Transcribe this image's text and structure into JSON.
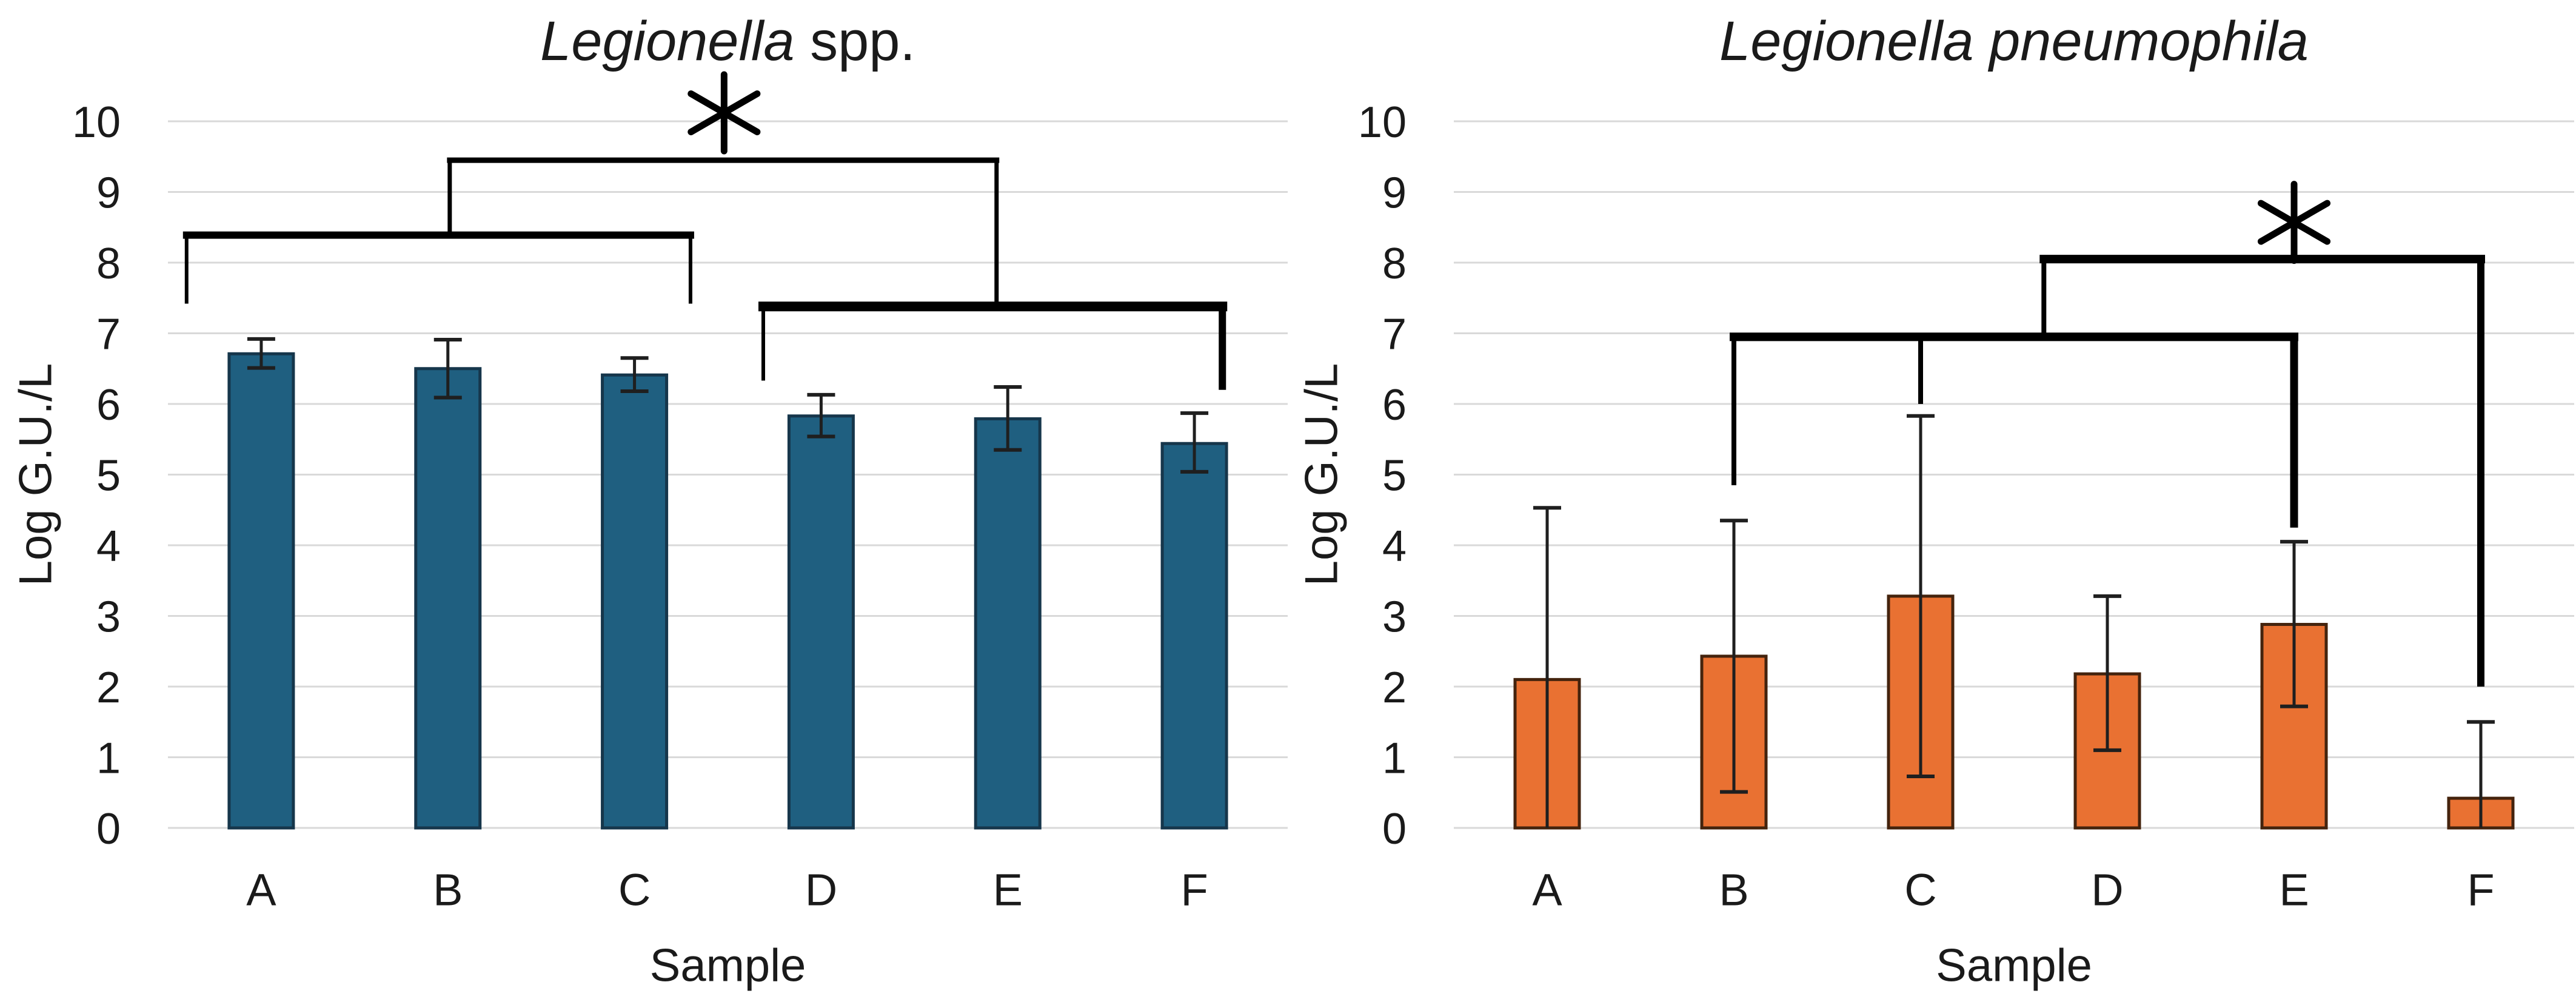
{
  "figure": {
    "background": "#FFFFFF",
    "grid_color": "#D9D9D9",
    "text_color": "#1A1A1A",
    "bracket_color": "#000000",
    "error_bar_color": "#1F1F1F"
  },
  "chart_data": [
    {
      "type": "bar",
      "title": "Legionella spp.",
      "title_parts": [
        {
          "text": "Legionella",
          "italic": true
        },
        {
          "text": " spp.",
          "italic": false
        }
      ],
      "xlabel": "Sample",
      "ylabel": "Log G.U./L",
      "categories": [
        "A",
        "B",
        "C",
        "D",
        "E",
        "F"
      ],
      "values": [
        6.71,
        6.5,
        6.41,
        5.83,
        5.79,
        5.44
      ],
      "error_high": [
        6.92,
        6.91,
        6.65,
        6.13,
        6.24,
        5.87
      ],
      "error_low": [
        6.51,
        6.09,
        6.18,
        5.54,
        5.35,
        5.04
      ],
      "error_low_capped": [
        true,
        true,
        true,
        true,
        true,
        true
      ],
      "ylim": [
        0,
        10
      ],
      "yticks": [
        0,
        1,
        2,
        3,
        4,
        5,
        6,
        7,
        8,
        9,
        10
      ],
      "grid": true,
      "legend": null,
      "bar_color": "#1F5F80",
      "bar_border_color": "#16364B",
      "significance": {
        "label": "*",
        "x": 2.48,
        "y": 10.12
      },
      "brackets": [
        {
          "x1": -0.4,
          "y1": 8.39,
          "x2": 2.3,
          "y2": 8.39,
          "w": 12
        },
        {
          "x1": -0.4,
          "y1": 8.39,
          "x2": -0.4,
          "y2": 7.42,
          "w": 6
        },
        {
          "x1": 2.3,
          "y1": 8.39,
          "x2": 2.3,
          "y2": 7.42,
          "w": 6
        },
        {
          "x1": 1.01,
          "y1": 8.39,
          "x2": 1.01,
          "y2": 9.45,
          "w": 7
        },
        {
          "x1": 1.01,
          "y1": 9.45,
          "x2": 3.94,
          "y2": 9.45,
          "w": 9
        },
        {
          "x1": 3.94,
          "y1": 9.45,
          "x2": 3.94,
          "y2": 7.38,
          "w": 7
        },
        {
          "x1": 2.69,
          "y1": 7.38,
          "x2": 5.15,
          "y2": 7.38,
          "w": 16
        },
        {
          "x1": 2.69,
          "y1": 7.38,
          "x2": 2.69,
          "y2": 6.33,
          "w": 6
        },
        {
          "x1": 5.15,
          "y1": 7.38,
          "x2": 5.15,
          "y2": 6.2,
          "w": 12
        }
      ]
    },
    {
      "type": "bar",
      "title": "Legionella pneumophila",
      "title_parts": [
        {
          "text": "Legionella pneumophila",
          "italic": true
        }
      ],
      "xlabel": "Sample",
      "ylabel": "Log G.U./L",
      "categories": [
        "A",
        "B",
        "C",
        "D",
        "E",
        "F"
      ],
      "values": [
        2.1,
        2.43,
        3.28,
        2.18,
        2.88,
        0.42
      ],
      "error_high": [
        4.53,
        4.35,
        5.83,
        3.28,
        4.05,
        1.5
      ],
      "error_low": [
        0,
        0.51,
        0.73,
        1.1,
        1.72,
        0
      ],
      "error_low_capped": [
        false,
        true,
        true,
        true,
        true,
        false
      ],
      "ylim": [
        0,
        10
      ],
      "yticks": [
        0,
        1,
        2,
        3,
        4,
        5,
        6,
        7,
        8,
        9,
        10
      ],
      "grid": true,
      "legend": null,
      "bar_color": "#E97132",
      "bar_border_color": "#44230D",
      "significance": {
        "label": "*",
        "x": 4.0,
        "y": 8.57
      },
      "brackets": [
        {
          "x1": 1.0,
          "y1": 6.95,
          "x2": 4.0,
          "y2": 6.95,
          "w": 14
        },
        {
          "x1": 1.0,
          "y1": 6.95,
          "x2": 1.0,
          "y2": 4.85,
          "w": 8
        },
        {
          "x1": 2.0,
          "y1": 6.95,
          "x2": 2.0,
          "y2": 6.0,
          "w": 8
        },
        {
          "x1": 4.0,
          "y1": 6.95,
          "x2": 4.0,
          "y2": 4.25,
          "w": 13
        },
        {
          "x1": 2.66,
          "y1": 6.95,
          "x2": 2.66,
          "y2": 8.05,
          "w": 8
        },
        {
          "x1": 2.66,
          "y1": 8.05,
          "x2": 5.0,
          "y2": 8.05,
          "w": 14
        },
        {
          "x1": 5.0,
          "y1": 8.05,
          "x2": 5.0,
          "y2": 2.0,
          "w": 12
        }
      ]
    }
  ]
}
